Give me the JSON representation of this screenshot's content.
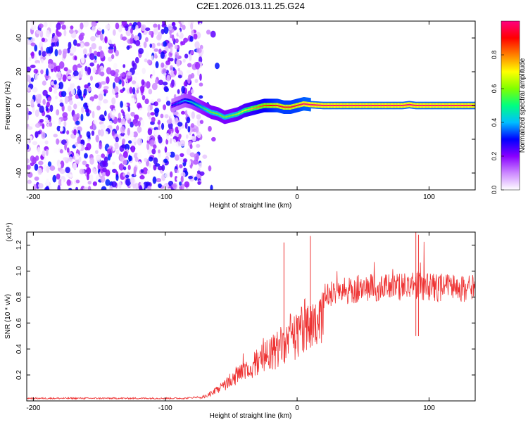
{
  "chart_data": [
    {
      "type": "heatmap",
      "title": "C2E1.2026.013.11.25.G24",
      "xlabel": "Height of straight line (km)",
      "ylabel": "Frequency (Hz)",
      "xlim": [
        -205,
        135
      ],
      "ylim": [
        -50,
        50
      ],
      "x_ticks": [
        -200,
        -100,
        0,
        100
      ],
      "y_ticks": [
        -40,
        -20,
        0,
        20,
        40
      ],
      "colorbar": {
        "label": "Normalized spectral amplitude",
        "range": [
          0,
          1
        ],
        "ticks": [
          "0.0",
          "0.2",
          "0.4",
          "0.6",
          "0.8"
        ],
        "colors": [
          "#ffffff",
          "#cc88ff",
          "#8800ff",
          "#0000ff",
          "#00bfff",
          "#00ff80",
          "#80ff00",
          "#ffff00",
          "#ff8000",
          "#ff0000",
          "#ff0080"
        ]
      },
      "noise_region": {
        "x": [
          -205,
          -70
        ],
        "note_value": "scattered low-amplitude speckle"
      },
      "ridge": {
        "x": [
          -95,
          -85,
          -80,
          -75,
          -70,
          -65,
          -60,
          -55,
          -50,
          -45,
          -40,
          -35,
          -30,
          -25,
          -20,
          -15,
          -10,
          -5,
          0,
          5,
          10,
          20,
          40,
          60,
          80,
          85,
          90,
          100,
          120,
          135
        ],
        "y": [
          0,
          3,
          2,
          0,
          -2,
          -4,
          -5,
          -7,
          -6,
          -5,
          -3,
          -2,
          -1,
          0,
          0,
          0,
          -1,
          -1,
          0,
          1,
          0.5,
          0,
          0,
          0,
          0,
          0.5,
          0,
          0,
          0,
          0
        ],
        "amp": [
          0.3,
          0.4,
          0.45,
          0.5,
          0.55,
          0.6,
          0.6,
          0.6,
          0.6,
          0.65,
          0.7,
          0.75,
          0.8,
          0.85,
          0.9,
          0.95,
          0.95,
          0.95,
          0.95,
          1,
          1,
          1,
          1,
          1,
          1,
          1,
          1,
          1,
          1,
          1
        ]
      }
    },
    {
      "type": "line",
      "title": "",
      "xlabel": "Height of straight line (km)",
      "ylabel": "SNR (10 * v/v)",
      "scale_note": "(x10⁴)",
      "xlim": [
        -205,
        135
      ],
      "ylim": [
        0,
        1.3
      ],
      "x_ticks": [
        -200,
        -100,
        0,
        100
      ],
      "y_ticks": [
        0.2,
        0.4,
        0.6,
        0.8,
        1.0,
        1.2
      ],
      "color": "#ee3333",
      "series": [
        {
          "x": [
            -205,
            -190,
            -175,
            -160,
            -145,
            -130,
            -115,
            -100,
            -85,
            -75,
            -70,
            -65,
            -60,
            -55,
            -50,
            -45,
            -40,
            -35,
            -30,
            -25,
            -20,
            -15,
            -10,
            -5,
            0,
            5,
            10,
            15,
            20,
            25,
            30,
            40,
            50,
            60,
            70,
            80,
            90,
            100,
            110,
            120,
            130,
            135
          ],
          "y": [
            0.02,
            0.02,
            0.02,
            0.02,
            0.02,
            0.02,
            0.02,
            0.02,
            0.02,
            0.03,
            0.05,
            0.08,
            0.12,
            0.17,
            0.22,
            0.28,
            0.33,
            0.38,
            0.42,
            0.46,
            0.5,
            0.55,
            0.6,
            0.65,
            0.7,
            0.78,
            0.82,
            0.86,
            0.9,
            0.92,
            0.94,
            0.96,
            0.97,
            0.98,
            0.99,
            0.99,
            1.0,
            0.98,
            0.98,
            0.98,
            0.97,
            0.97
          ]
        }
      ],
      "spikes": [
        {
          "x": -10,
          "y": 1.22
        },
        {
          "x": 10,
          "y": 1.27
        },
        {
          "x": 90,
          "y": 1.3
        },
        {
          "x": 92,
          "y": 1.28
        }
      ]
    }
  ]
}
